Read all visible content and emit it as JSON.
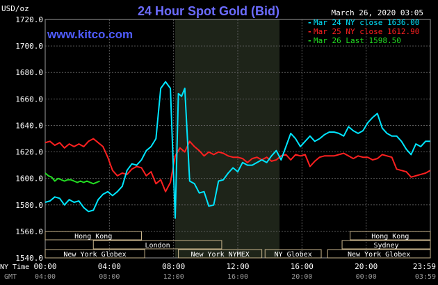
{
  "chart_data": {
    "type": "line",
    "title": "24 Hour Spot Gold (Bid)",
    "date": "March 26, 2020 03:05",
    "watermark": "www.kitco.com",
    "y_unit": "USD/oz",
    "ylim": [
      1540,
      1720
    ],
    "y_ticks": [
      "1540.0",
      "1560.0",
      "1580.0",
      "1600.0",
      "1620.0",
      "1640.0",
      "1660.0",
      "1680.0",
      "1700.0",
      "1720.0"
    ],
    "xlim": [
      0,
      24
    ],
    "x_ticks_ny": [
      "00:00",
      "04:00",
      "08:00",
      "12:00",
      "16:00",
      "20:00",
      "23:59"
    ],
    "x_ticks_gmt": [
      "04:00",
      "08:00",
      "12:00",
      "16:00",
      "20:00",
      "00:00",
      "03:59"
    ],
    "x_axis_labels": {
      "ny": "NY Time",
      "gmt": "GMT"
    },
    "highlight_band": [
      8.1,
      14.6
    ],
    "colors": {
      "bg": "#000000",
      "grid": "#5a5a5a",
      "band": "#1e2419",
      "title": "#6c6cff",
      "watermark": "#4f5cff",
      "text": "#ffffff",
      "session": "#c8b48c"
    },
    "legend": [
      {
        "label": "Mar 24 NY close 1636.00",
        "color": "#00e5ff"
      },
      {
        "label": "Mar 25 NY close 1612.90",
        "color": "#ff2020"
      },
      {
        "label": "Mar 26 Last 1598.50",
        "color": "#22dd22"
      }
    ],
    "sessions": [
      {
        "label": "Hong Kong",
        "start": 0.0,
        "end": 6.0,
        "row": 0
      },
      {
        "label": "London",
        "start": 3.0,
        "end": 11.0,
        "row": 1
      },
      {
        "label": "New York Globex",
        "start": 0.0,
        "end": 6.2,
        "row": 2
      },
      {
        "label": "New York NYMEX",
        "start": 8.3,
        "end": 13.5,
        "row": 2
      },
      {
        "label": "NY Globex",
        "start": 13.7,
        "end": 17.2,
        "row": 2
      },
      {
        "label": "Hong Kong",
        "start": 19.0,
        "end": 24.0,
        "row": 0
      },
      {
        "label": "Sydney",
        "start": 18.5,
        "end": 24.0,
        "row": 1
      },
      {
        "label": "New York Globex",
        "start": 17.6,
        "end": 24.0,
        "row": 2
      }
    ],
    "series": [
      {
        "color": "#22dd22",
        "x": [
          0.0,
          0.2,
          0.4,
          0.6,
          0.8,
          1.0,
          1.2,
          1.4,
          1.6,
          1.8,
          2.0,
          2.2,
          2.4,
          2.6,
          2.8,
          3.0,
          3.2,
          3.4
        ],
        "y": [
          1604,
          1602,
          1601,
          1598,
          1600,
          1599,
          1598,
          1599,
          1599,
          1598,
          1597,
          1598,
          1597,
          1598,
          1597,
          1596,
          1597,
          1598
        ]
      },
      {
        "color": "#ff2020",
        "x": [
          0.0,
          0.3,
          0.6,
          0.9,
          1.2,
          1.5,
          1.8,
          2.1,
          2.4,
          2.7,
          3.0,
          3.3,
          3.6,
          3.9,
          4.2,
          4.5,
          4.8,
          5.1,
          5.4,
          5.7,
          6.0,
          6.3,
          6.6,
          6.9,
          7.2,
          7.5,
          7.8,
          8.1,
          8.4,
          8.7,
          9.0,
          9.3,
          9.6,
          9.9,
          10.2,
          10.5,
          10.8,
          11.1,
          11.4,
          11.7,
          12.0,
          12.3,
          12.6,
          12.9,
          13.2,
          13.5,
          13.8,
          14.1,
          14.4,
          14.7,
          15.0,
          15.3,
          15.6,
          15.9,
          16.2,
          16.5,
          16.8,
          17.1,
          17.4,
          17.7,
          18.0,
          18.3,
          18.6,
          18.9,
          19.2,
          19.5,
          19.8,
          20.1,
          20.4,
          20.7,
          21.0,
          21.3,
          21.6,
          21.9,
          22.2,
          22.5,
          22.8,
          23.1,
          23.4,
          23.7,
          23.99
        ],
        "y": [
          1627,
          1628,
          1625,
          1627,
          1623,
          1626,
          1624,
          1626,
          1624,
          1628,
          1630,
          1627,
          1624,
          1616,
          1606,
          1602,
          1604,
          1603,
          1607,
          1609,
          1608,
          1602,
          1605,
          1596,
          1599,
          1590,
          1597,
          1617,
          1623,
          1620,
          1628,
          1624,
          1621,
          1617,
          1620,
          1618,
          1620,
          1619,
          1617,
          1616,
          1616,
          1615,
          1612,
          1615,
          1616,
          1614,
          1616,
          1613,
          1614,
          1617,
          1618,
          1614,
          1618,
          1617,
          1618,
          1609,
          1613,
          1616,
          1617,
          1617,
          1617,
          1618,
          1619,
          1617,
          1615,
          1617,
          1616,
          1616,
          1614,
          1615,
          1618,
          1617,
          1616,
          1607,
          1606,
          1605,
          1601,
          1602,
          1603,
          1604,
          1606
        ]
      },
      {
        "color": "#00e5ff",
        "x": [
          0.0,
          0.3,
          0.6,
          0.9,
          1.2,
          1.5,
          1.8,
          2.1,
          2.4,
          2.7,
          3.0,
          3.3,
          3.6,
          3.9,
          4.2,
          4.5,
          4.8,
          5.1,
          5.4,
          5.7,
          6.0,
          6.3,
          6.6,
          6.9,
          7.2,
          7.5,
          7.8,
          8.1,
          8.3,
          8.5,
          8.7,
          9.0,
          9.3,
          9.6,
          9.9,
          10.2,
          10.5,
          10.8,
          11.1,
          11.4,
          11.7,
          12.0,
          12.3,
          12.6,
          12.9,
          13.2,
          13.5,
          13.8,
          14.1,
          14.4,
          14.7,
          15.0,
          15.3,
          15.6,
          15.9,
          16.2,
          16.5,
          16.8,
          17.1,
          17.4,
          17.7,
          18.0,
          18.3,
          18.6,
          18.9,
          19.2,
          19.5,
          19.8,
          20.1,
          20.4,
          20.7,
          21.0,
          21.3,
          21.6,
          21.9,
          22.2,
          22.5,
          22.8,
          23.1,
          23.4,
          23.7,
          23.99
        ],
        "y": [
          1582,
          1583,
          1586,
          1585,
          1580,
          1584,
          1582,
          1583,
          1578,
          1575,
          1576,
          1584,
          1588,
          1590,
          1587,
          1590,
          1594,
          1606,
          1611,
          1610,
          1614,
          1621,
          1624,
          1630,
          1668,
          1673,
          1668,
          1570,
          1664,
          1662,
          1668,
          1598,
          1596,
          1589,
          1590,
          1579,
          1580,
          1598,
          1599,
          1604,
          1608,
          1605,
          1612,
          1610,
          1610,
          1612,
          1614,
          1612,
          1617,
          1621,
          1614,
          1624,
          1634,
          1630,
          1624,
          1628,
          1632,
          1628,
          1630,
          1633,
          1635,
          1635,
          1634,
          1632,
          1639,
          1636,
          1634,
          1636,
          1642,
          1646,
          1649,
          1638,
          1634,
          1632,
          1632,
          1628,
          1622,
          1618,
          1626,
          1624,
          1628,
          1628
        ]
      }
    ]
  }
}
